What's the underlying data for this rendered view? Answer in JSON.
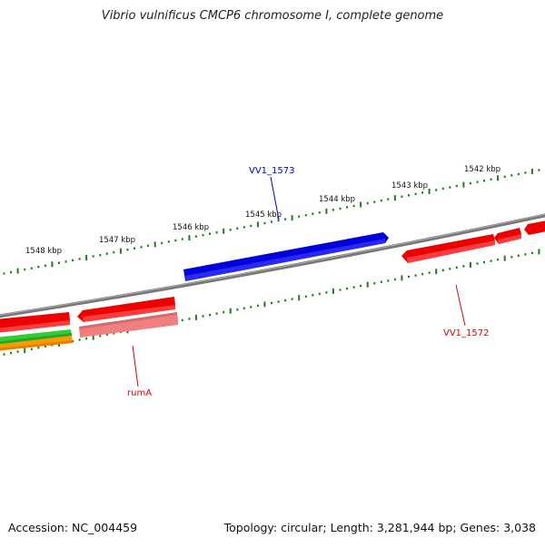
{
  "title": "Vibrio vulnificus CMCP6 chromosome I, complete genome",
  "footer": {
    "accession": "Accession: NC_004459",
    "topology": "Topology: circular; Length: 3,281,944 bp; Genes: 3,038"
  },
  "map": {
    "tick_labels": [
      "1542 kbp",
      "1543 kbp",
      "1544 kbp",
      "1545 kbp",
      "1546 kbp",
      "1547 kbp",
      "1548 kbp"
    ],
    "gene_labels": [
      {
        "text": "VV1_1573",
        "color": "#0000cc"
      },
      {
        "text": "VV1_1572",
        "color": "#dd0000"
      },
      {
        "text": "rumA",
        "color": "#dd0000"
      }
    ],
    "colors": {
      "backbone": "#7f7f7f",
      "ticks": "#1a7f1a",
      "forward_gene": "#0000dd",
      "reverse_gene": "#ee0000",
      "reverse_gene_light": "#f08080",
      "track_green": "#33cc33",
      "track_orange": "#ff9900"
    }
  }
}
